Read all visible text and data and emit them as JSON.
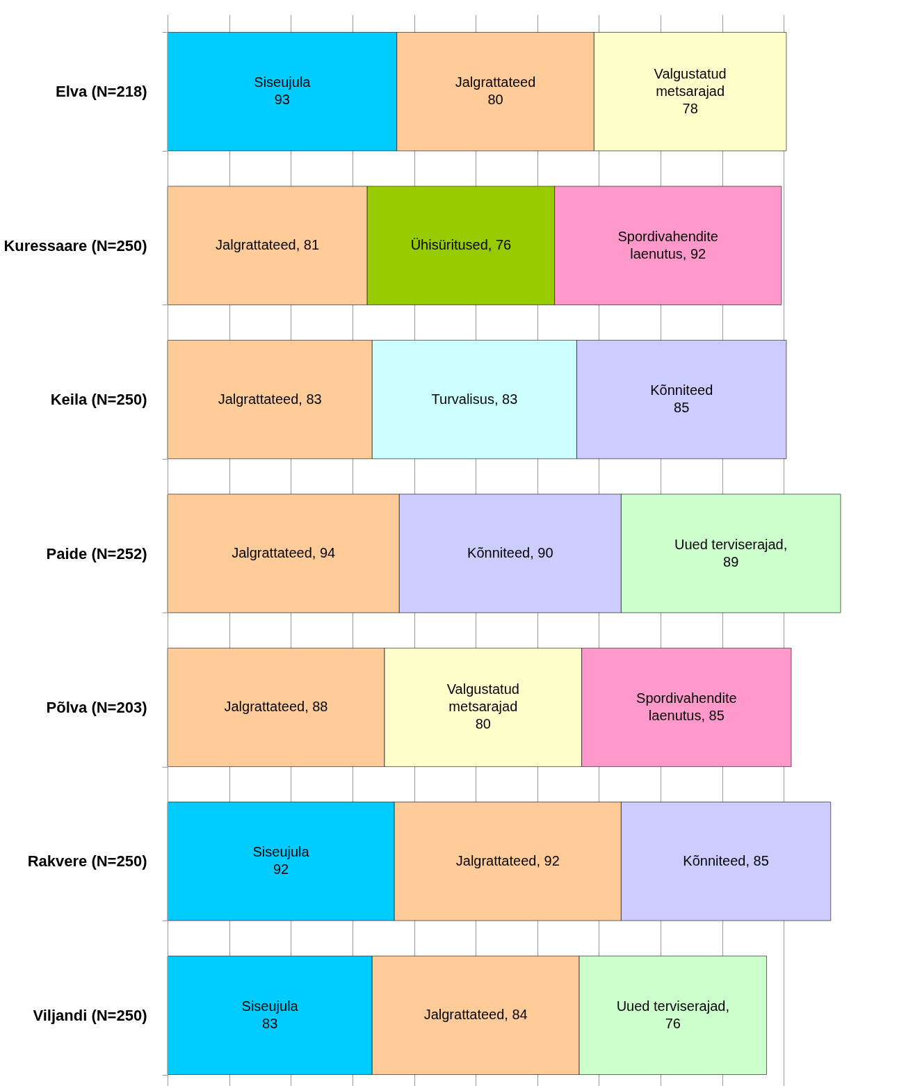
{
  "chart_data": {
    "type": "bar",
    "orientation": "horizontal",
    "stacked": true,
    "categories": [
      "Elva (N=218)",
      "Kuressaare (N=250)",
      "Keila (N=250)",
      "Paide (N=252)",
      "Põlva (N=203)",
      "Rakvere (N=250)",
      "Viljandi (N=250)"
    ],
    "series": [
      {
        "values": [
          93,
          81,
          83,
          94,
          88,
          92,
          83
        ],
        "colors": [
          "#00ccff",
          "#ffcc99",
          "#ffcc99",
          "#ffcc99",
          "#ffcc99",
          "#00ccff",
          "#00ccff"
        ],
        "value_labels": [
          "Siseujula\n93",
          "Jalgrattateed, 81",
          "Jalgrattateed, 83",
          "Jalgrattateed, 94",
          "Jalgrattateed, 88",
          "Siseujula\n92",
          "Siseujula\n83"
        ]
      },
      {
        "values": [
          80,
          76,
          83,
          90,
          80,
          92,
          84
        ],
        "colors": [
          "#ffcc99",
          "#99cc00",
          "#ccffff",
          "#ccccff",
          "#ffffcc",
          "#ffcc99",
          "#ffcc99"
        ],
        "value_labels": [
          "Jalgrattateed\n80",
          "Ühisüritused, 76",
          "Turvalisus, 83",
          "Kõnniteed, 90",
          "Valgustatud\nmetsarajad\n80",
          "Jalgrattateed, 92",
          "Jalgrattateed, 84"
        ]
      },
      {
        "values": [
          78,
          92,
          85,
          89,
          85,
          85,
          76
        ],
        "colors": [
          "#ffffcc",
          "#ff99cc",
          "#ccccff",
          "#ccffcc",
          "#ff99cc",
          "#ccccff",
          "#ccffcc"
        ],
        "value_labels": [
          "Valgustatud\nmetsarajad\n78",
          "Spordivahendite\nlaenutus, 92",
          "Kõnniteed\n85",
          "Uued terviserajad,\n89",
          "Spordivahendite\nlaenutus, 85",
          "Kõnniteed, 85",
          "Uued terviserajad,\n76"
        ]
      }
    ],
    "xlim": [
      0,
      275
    ],
    "xticks": [
      0,
      25,
      50,
      75,
      100,
      125,
      150,
      175,
      200,
      225,
      250
    ],
    "grid": "x",
    "tick_labels": "y"
  }
}
